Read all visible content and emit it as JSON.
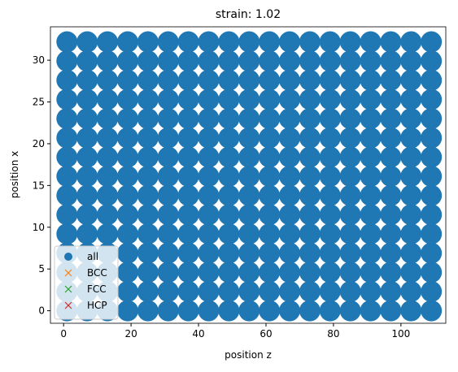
{
  "chart_data": {
    "type": "scatter",
    "title": "strain: 1.02",
    "xlabel": "position z",
    "ylabel": "position x",
    "xlim": [
      -3.9,
      113.3
    ],
    "ylim": [
      -1.5,
      34
    ],
    "xticks": [
      0,
      20,
      40,
      60,
      80,
      100
    ],
    "yticks": [
      0,
      5,
      10,
      15,
      20,
      25,
      30
    ],
    "legend": "lower left",
    "series": [
      {
        "name": "all",
        "color": "#1f77b4",
        "marker": "o",
        "x": [
          1,
          7,
          13,
          19,
          25,
          31,
          37,
          43,
          49,
          55,
          61,
          67,
          73,
          79,
          85,
          91,
          97,
          103,
          109,
          1,
          7,
          13,
          19,
          25,
          31,
          37,
          43,
          49,
          55,
          61,
          67,
          73,
          79,
          85,
          91,
          97,
          103,
          109,
          1,
          7,
          13,
          19,
          25,
          31,
          37,
          43,
          49,
          55,
          61,
          67,
          73,
          79,
          85,
          91,
          97,
          103,
          109,
          1,
          7,
          13,
          19,
          25,
          31,
          37,
          43,
          49,
          55,
          61,
          67,
          73,
          79,
          85,
          91,
          97,
          103,
          109,
          1,
          7,
          13,
          19,
          25,
          31,
          37,
          43,
          49,
          55,
          61,
          67,
          73,
          79,
          85,
          91,
          97,
          103,
          109,
          1,
          7,
          13,
          19,
          25,
          31,
          37,
          43,
          49,
          55,
          61,
          67,
          73,
          79,
          85,
          91,
          97,
          103,
          109,
          1,
          7,
          13,
          19,
          25,
          31,
          37,
          43,
          49,
          55,
          61,
          67,
          73,
          79,
          85,
          91,
          97,
          103,
          109,
          1,
          7,
          13,
          19,
          25,
          31,
          37,
          43,
          49,
          55,
          61,
          67,
          73,
          79,
          85,
          91,
          97,
          103,
          109,
          1,
          7,
          13,
          19,
          25,
          31,
          37,
          43,
          49,
          55,
          61,
          67,
          73,
          79,
          85,
          91,
          97,
          103,
          109,
          1,
          7,
          13,
          19,
          25,
          31,
          37,
          43,
          49,
          55,
          61,
          67,
          73,
          79,
          85,
          91,
          97,
          103,
          109,
          1,
          7,
          13,
          19,
          25,
          31,
          37,
          43,
          49,
          55,
          61,
          67,
          73,
          79,
          85,
          91,
          97,
          103,
          109,
          1,
          7,
          13,
          19,
          25,
          31,
          37,
          43,
          49,
          55,
          61,
          67,
          73,
          79,
          85,
          91,
          97,
          103,
          109,
          1,
          7,
          13,
          19,
          25,
          31,
          37,
          43,
          49,
          55,
          61,
          67,
          73,
          79,
          85,
          91,
          97,
          103,
          109,
          1,
          7,
          13,
          19,
          25,
          31,
          37,
          43,
          49,
          55,
          61,
          67,
          73,
          79,
          85,
          91,
          97,
          103,
          109,
          1,
          7,
          13,
          19,
          25,
          31,
          37,
          43,
          49,
          55,
          61,
          67,
          73,
          79,
          85,
          91,
          97,
          103,
          109
        ],
        "values": [
          0,
          0,
          0,
          0,
          0,
          0,
          0,
          0,
          0,
          0,
          0,
          0,
          0,
          0,
          0,
          0,
          0,
          0,
          0,
          2.3,
          2.3,
          2.3,
          2.3,
          2.3,
          2.3,
          2.3,
          2.3,
          2.3,
          2.3,
          2.3,
          2.3,
          2.3,
          2.3,
          2.3,
          2.3,
          2.3,
          2.3,
          2.3,
          4.6,
          4.6,
          4.6,
          4.6,
          4.6,
          4.6,
          4.6,
          4.6,
          4.6,
          4.6,
          4.6,
          4.6,
          4.6,
          4.6,
          4.6,
          4.6,
          4.6,
          4.6,
          4.6,
          6.9,
          6.9,
          6.9,
          6.9,
          6.9,
          6.9,
          6.9,
          6.9,
          6.9,
          6.9,
          6.9,
          6.9,
          6.9,
          6.9,
          6.9,
          6.9,
          6.9,
          6.9,
          6.9,
          9.2,
          9.2,
          9.2,
          9.2,
          9.2,
          9.2,
          9.2,
          9.2,
          9.2,
          9.2,
          9.2,
          9.2,
          9.2,
          9.2,
          9.2,
          9.2,
          9.2,
          9.2,
          9.2,
          11.5,
          11.5,
          11.5,
          11.5,
          11.5,
          11.5,
          11.5,
          11.5,
          11.5,
          11.5,
          11.5,
          11.5,
          11.5,
          11.5,
          11.5,
          11.5,
          11.5,
          11.5,
          11.5,
          13.8,
          13.8,
          13.8,
          13.8,
          13.8,
          13.8,
          13.8,
          13.8,
          13.8,
          13.8,
          13.8,
          13.8,
          13.8,
          13.8,
          13.8,
          13.8,
          13.8,
          13.8,
          13.8,
          16.1,
          16.1,
          16.1,
          16.1,
          16.1,
          16.1,
          16.1,
          16.1,
          16.1,
          16.1,
          16.1,
          16.1,
          16.1,
          16.1,
          16.1,
          16.1,
          16.1,
          16.1,
          16.1,
          18.4,
          18.4,
          18.4,
          18.4,
          18.4,
          18.4,
          18.4,
          18.4,
          18.4,
          18.4,
          18.4,
          18.4,
          18.4,
          18.4,
          18.4,
          18.4,
          18.4,
          18.4,
          18.4,
          20.7,
          20.7,
          20.7,
          20.7,
          20.7,
          20.7,
          20.7,
          20.7,
          20.7,
          20.7,
          20.7,
          20.7,
          20.7,
          20.7,
          20.7,
          20.7,
          20.7,
          20.7,
          20.7,
          23,
          23,
          23,
          23,
          23,
          23,
          23,
          23,
          23,
          23,
          23,
          23,
          23,
          23,
          23,
          23,
          23,
          23,
          23,
          25.3,
          25.3,
          25.3,
          25.3,
          25.3,
          25.3,
          25.3,
          25.3,
          25.3,
          25.3,
          25.3,
          25.3,
          25.3,
          25.3,
          25.3,
          25.3,
          25.3,
          25.3,
          25.3,
          27.6,
          27.6,
          27.6,
          27.6,
          27.6,
          27.6,
          27.6,
          27.6,
          27.6,
          27.6,
          27.6,
          27.6,
          27.6,
          27.6,
          27.6,
          27.6,
          27.6,
          27.6,
          27.6,
          29.9,
          29.9,
          29.9,
          29.9,
          29.9,
          29.9,
          29.9,
          29.9,
          29.9,
          29.9,
          29.9,
          29.9,
          29.9,
          29.9,
          29.9,
          29.9,
          29.9,
          29.9,
          29.9,
          32.2,
          32.2,
          32.2,
          32.2,
          32.2,
          32.2,
          32.2,
          32.2,
          32.2,
          32.2,
          32.2,
          32.2,
          32.2,
          32.2,
          32.2,
          32.2,
          32.2,
          32.2,
          32.2
        ]
      },
      {
        "name": "BCC",
        "color": "#ff7f0e",
        "marker": "x",
        "x": [],
        "values": []
      },
      {
        "name": "FCC",
        "color": "#2ca02c",
        "marker": "x",
        "x": [],
        "values": []
      },
      {
        "name": "HCP",
        "color": "#d62728",
        "marker": "x",
        "x": [],
        "values": []
      }
    ]
  }
}
